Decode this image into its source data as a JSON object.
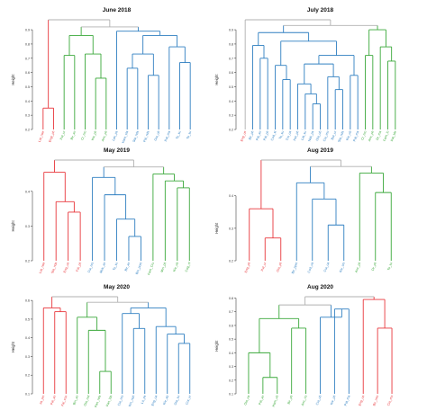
{
  "colors": {
    "red": "#e8373c",
    "green": "#3aa83a",
    "blue": "#2f7fc1",
    "gray": "#b0b0b0"
  },
  "chart_data": [
    {
      "type": "dendrogram",
      "title": "June 2018",
      "ylabel": "Height",
      "ylim": [
        0.2,
        0.9
      ],
      "yticks": [
        0.2,
        0.3,
        0.4,
        0.5,
        0.6,
        0.7,
        0.8,
        0.9
      ],
      "leaves": [
        {
          "label": "Lat_nae",
          "color": "red"
        },
        {
          "label": "Engl_ph",
          "color": "red"
        },
        {
          "label": "Pal_ur",
          "color": "green"
        },
        {
          "label": "Bir_an",
          "color": "green"
        },
        {
          "label": "Cr_mo",
          "color": "green"
        },
        {
          "label": "Kiv_ph",
          "color": "green"
        },
        {
          "label": "Anc_ph",
          "color": "green"
        },
        {
          "label": "Lak_ps",
          "color": "blue"
        },
        {
          "label": "Ham_sla",
          "color": "blue"
        },
        {
          "label": "Sta_nds",
          "color": "blue"
        },
        {
          "label": "Pal_nds",
          "color": "blue"
        },
        {
          "label": "Gla_ub",
          "color": "blue"
        },
        {
          "label": "Pat_ma",
          "color": "blue"
        },
        {
          "label": "To_su",
          "color": "blue"
        },
        {
          "label": "To_su",
          "color": "blue"
        }
      ],
      "merges": [
        {
          "a": 0,
          "b": 1,
          "h": 0.35,
          "color": "red"
        },
        {
          "a": 2,
          "b": 3,
          "h": 0.72,
          "color": "green"
        },
        {
          "a": 5,
          "b": 6,
          "h": 0.56,
          "color": "green"
        },
        {
          "a": 4,
          "b": "m2",
          "h": 0.73,
          "color": "green"
        },
        {
          "a": "m1",
          "b": "m3",
          "h": 0.86,
          "color": "green"
        },
        {
          "a": 8,
          "b": 9,
          "h": 0.63,
          "color": "blue"
        },
        {
          "a": 10,
          "b": 11,
          "h": 0.58,
          "color": "blue"
        },
        {
          "a": 13,
          "b": 14,
          "h": 0.67,
          "color": "blue"
        },
        {
          "a": 12,
          "b": "m7",
          "h": 0.78,
          "color": "blue"
        },
        {
          "a": "m5",
          "b": "m6",
          "h": 0.73,
          "color": "blue"
        },
        {
          "a": "m9",
          "b": "m8",
          "h": 0.86,
          "color": "blue"
        },
        {
          "a": 7,
          "b": "m10",
          "h": 0.89,
          "color": "blue"
        },
        {
          "a": "m4",
          "b": "m11",
          "h": 0.92,
          "color": "gray"
        },
        {
          "a": "m0",
          "b": "m12",
          "h": 0.97,
          "color": "gray"
        }
      ]
    },
    {
      "type": "dendrogram",
      "title": "July 2018",
      "ylabel": "Height",
      "ylim": [
        0.2,
        0.9
      ],
      "yticks": [
        0.2,
        0.3,
        0.4,
        0.5,
        0.6,
        0.7,
        0.8,
        0.9
      ],
      "leaves": [
        {
          "label": "Eng_ue",
          "color": "red"
        },
        {
          "label": "Bir_ph",
          "color": "blue"
        },
        {
          "label": "Pal_an",
          "color": "blue"
        },
        {
          "label": "Pal_ph",
          "color": "blue"
        },
        {
          "label": "Cod_st",
          "color": "blue"
        },
        {
          "label": "To_su",
          "color": "blue"
        },
        {
          "label": "Tro_ua",
          "color": "blue"
        },
        {
          "label": "Hel_ph",
          "color": "blue"
        },
        {
          "label": "Lat_su",
          "color": "blue"
        },
        {
          "label": "Nak_ps",
          "color": "blue"
        },
        {
          "label": "Gla_ub",
          "color": "blue"
        },
        {
          "label": "Cia_mo",
          "color": "blue"
        },
        {
          "label": "Bol_ur",
          "color": "blue"
        },
        {
          "label": "Sta_nds",
          "color": "blue"
        },
        {
          "label": "Kiv_ub",
          "color": "blue"
        },
        {
          "label": "Pat_ma",
          "color": "blue"
        },
        {
          "label": "Cr_mo",
          "color": "green"
        },
        {
          "label": "Anc_ph",
          "color": "green"
        },
        {
          "label": "Dr_ma",
          "color": "green"
        },
        {
          "label": "Fam_lo",
          "color": "green"
        },
        {
          "label": "Pat_lde",
          "color": "green"
        }
      ],
      "merges": [
        {
          "a": 2,
          "b": 3,
          "h": 0.7,
          "color": "blue"
        },
        {
          "a": 1,
          "b": "m0",
          "h": 0.79,
          "color": "blue"
        },
        {
          "a": 5,
          "b": 6,
          "h": 0.55,
          "color": "blue"
        },
        {
          "a": 4,
          "b": "m2",
          "h": 0.65,
          "color": "blue"
        },
        {
          "a": 9,
          "b": 10,
          "h": 0.38,
          "color": "blue"
        },
        {
          "a": 8,
          "b": "m4",
          "h": 0.45,
          "color": "blue"
        },
        {
          "a": 7,
          "b": "m5",
          "h": 0.52,
          "color": "blue"
        },
        {
          "a": 12,
          "b": 13,
          "h": 0.48,
          "color": "blue"
        },
        {
          "a": 11,
          "b": "m7",
          "h": 0.57,
          "color": "blue"
        },
        {
          "a": "m6",
          "b": "m8",
          "h": 0.66,
          "color": "blue"
        },
        {
          "a": 14,
          "b": 15,
          "h": 0.58,
          "color": "blue"
        },
        {
          "a": "m9",
          "b": "m10",
          "h": 0.72,
          "color": "blue"
        },
        {
          "a": "m3",
          "b": "m11",
          "h": 0.82,
          "color": "blue"
        },
        {
          "a": "m1",
          "b": "m12",
          "h": 0.88,
          "color": "blue"
        },
        {
          "a": 19,
          "b": 20,
          "h": 0.68,
          "color": "green"
        },
        {
          "a": 18,
          "b": "m14",
          "h": 0.78,
          "color": "green"
        },
        {
          "a": 16,
          "b": 17,
          "h": 0.72,
          "color": "green"
        },
        {
          "a": "m16",
          "b": "m15",
          "h": 0.9,
          "color": "green"
        },
        {
          "a": "m13",
          "b": "m17",
          "h": 0.93,
          "color": "gray"
        },
        {
          "a": 0,
          "b": "m18",
          "h": 0.97,
          "color": "gray"
        }
      ]
    },
    {
      "type": "dendrogram",
      "title": "May 2019",
      "ylabel": "Height",
      "ylim": [
        0.2,
        0.4
      ],
      "yticks": [
        0.2,
        0.3,
        0.4
      ],
      "leaves": [
        {
          "label": "Lat_nae",
          "color": "red"
        },
        {
          "label": "Sta_nds",
          "color": "red"
        },
        {
          "label": "Eng_ue",
          "color": "red"
        },
        {
          "label": "Fal_ph",
          "color": "red"
        },
        {
          "label": "Cia_mo",
          "color": "blue"
        },
        {
          "label": "Muk_an",
          "color": "blue"
        },
        {
          "label": "To_su",
          "color": "blue"
        },
        {
          "label": "Bir_an",
          "color": "blue"
        },
        {
          "label": "Bin_pom",
          "color": "blue"
        },
        {
          "label": "Fam_Cru",
          "color": "green"
        },
        {
          "label": "Min_ph",
          "color": "green"
        },
        {
          "label": "Kiv_ub",
          "color": "green"
        },
        {
          "label": "Cog_nl",
          "color": "green"
        }
      ],
      "merges": [
        {
          "a": 2,
          "b": 3,
          "h": 0.34,
          "color": "red"
        },
        {
          "a": 1,
          "b": "m0",
          "h": 0.37,
          "color": "red"
        },
        {
          "a": 0,
          "b": "m1",
          "h": 0.455,
          "color": "red"
        },
        {
          "a": 7,
          "b": 8,
          "h": 0.27,
          "color": "blue"
        },
        {
          "a": 6,
          "b": "m3",
          "h": 0.32,
          "color": "blue"
        },
        {
          "a": 5,
          "b": "m4",
          "h": 0.39,
          "color": "blue"
        },
        {
          "a": 4,
          "b": "m5",
          "h": 0.44,
          "color": "blue"
        },
        {
          "a": 11,
          "b": 12,
          "h": 0.41,
          "color": "green"
        },
        {
          "a": 10,
          "b": "m7",
          "h": 0.43,
          "color": "green"
        },
        {
          "a": 9,
          "b": "m8",
          "h": 0.45,
          "color": "green"
        },
        {
          "a": "m6",
          "b": "m9",
          "h": 0.47,
          "color": "gray"
        },
        {
          "a": "m2",
          "b": "m10",
          "h": 0.49,
          "color": "gray"
        }
      ]
    },
    {
      "type": "dendrogram",
      "title": "Aug 2019",
      "ylabel": "Height",
      "ylim": [
        0.2,
        0.4
      ],
      "yticks": [
        0.2,
        0.3,
        0.4
      ],
      "leaves": [
        {
          "label": "Eng_ph",
          "color": "red"
        },
        {
          "label": "Pal_ur",
          "color": "red"
        },
        {
          "label": "Gla_ph",
          "color": "red"
        },
        {
          "label": "Bir_ppm",
          "color": "blue"
        },
        {
          "label": "Cod_ua",
          "color": "blue"
        },
        {
          "label": "Cia_ua",
          "color": "blue"
        },
        {
          "label": "Kiv_cm",
          "color": "blue"
        },
        {
          "label": "Anc_ph",
          "color": "green"
        },
        {
          "label": "Dr_ph",
          "color": "green"
        },
        {
          "label": "To_su",
          "color": "green"
        }
      ],
      "merges": [
        {
          "a": 1,
          "b": 2,
          "h": 0.27,
          "color": "red"
        },
        {
          "a": 0,
          "b": "m0",
          "h": 0.36,
          "color": "red"
        },
        {
          "a": 5,
          "b": 6,
          "h": 0.31,
          "color": "blue"
        },
        {
          "a": 4,
          "b": "m2",
          "h": 0.39,
          "color": "blue"
        },
        {
          "a": 3,
          "b": "m3",
          "h": 0.44,
          "color": "blue"
        },
        {
          "a": 8,
          "b": 9,
          "h": 0.41,
          "color": "green"
        },
        {
          "a": 7,
          "b": "m5",
          "h": 0.47,
          "color": "green"
        },
        {
          "a": "m4",
          "b": "m6",
          "h": 0.49,
          "color": "gray"
        },
        {
          "a": "m1",
          "b": "m7",
          "h": 0.51,
          "color": "gray"
        }
      ]
    },
    {
      "type": "dendrogram",
      "title": "May 2020",
      "ylabel": "Height",
      "ylim": [
        0.1,
        0.6
      ],
      "yticks": [
        0.1,
        0.2,
        0.3,
        0.4,
        0.5,
        0.6
      ],
      "leaves": [
        {
          "label": "Ja_pin",
          "color": "red"
        },
        {
          "label": "Pal_an",
          "color": "red"
        },
        {
          "label": "Fal_cou",
          "color": "red"
        },
        {
          "label": "Bin_an",
          "color": "green"
        },
        {
          "label": "Ola_not",
          "color": "green"
        },
        {
          "label": "Pan_nds",
          "color": "green"
        },
        {
          "label": "Pan_lde",
          "color": "green"
        },
        {
          "label": "Cia_mo",
          "color": "blue"
        },
        {
          "label": "Kin_nah",
          "color": "blue"
        },
        {
          "label": "Lo_ps",
          "color": "blue"
        },
        {
          "label": "Eng_ua",
          "color": "blue"
        },
        {
          "label": "Kiv_ap",
          "color": "blue"
        },
        {
          "label": "Ola_su",
          "color": "blue"
        },
        {
          "label": "Cra_ur",
          "color": "blue"
        }
      ],
      "merges": [
        {
          "a": 1,
          "b": 2,
          "h": 0.54,
          "color": "red"
        },
        {
          "a": 0,
          "b": "m0",
          "h": 0.56,
          "color": "red"
        },
        {
          "a": 5,
          "b": 6,
          "h": 0.22,
          "color": "green"
        },
        {
          "a": 4,
          "b": "m2",
          "h": 0.44,
          "color": "green"
        },
        {
          "a": 3,
          "b": "m3",
          "h": 0.51,
          "color": "green"
        },
        {
          "a": 8,
          "b": 9,
          "h": 0.45,
          "color": "blue"
        },
        {
          "a": 7,
          "b": "m5",
          "h": 0.53,
          "color": "blue"
        },
        {
          "a": 12,
          "b": 13,
          "h": 0.37,
          "color": "blue"
        },
        {
          "a": 11,
          "b": "m7",
          "h": 0.42,
          "color": "blue"
        },
        {
          "a": 10,
          "b": "m8",
          "h": 0.46,
          "color": "blue"
        },
        {
          "a": "m6",
          "b": "m9",
          "h": 0.56,
          "color": "blue"
        },
        {
          "a": "m4",
          "b": "m10",
          "h": 0.59,
          "color": "gray"
        },
        {
          "a": "m1",
          "b": "m11",
          "h": 0.62,
          "color": "gray"
        }
      ]
    },
    {
      "type": "dendrogram",
      "title": "Aug 2020",
      "ylabel": "Height",
      "ylim": [
        0.1,
        0.8
      ],
      "yticks": [
        0.1,
        0.2,
        0.3,
        0.4,
        0.5,
        0.6,
        0.7,
        0.8
      ],
      "leaves": [
        {
          "label": "Ola_ua",
          "color": "green"
        },
        {
          "label": "Pal_an",
          "color": "green"
        },
        {
          "label": "Ham_ub",
          "color": "green"
        },
        {
          "label": "Bir_ph",
          "color": "green"
        },
        {
          "label": "Anc_no",
          "color": "green"
        },
        {
          "label": "Cia_ub",
          "color": "blue"
        },
        {
          "label": "Kiv_ph",
          "color": "blue"
        },
        {
          "label": "Pat_ma",
          "color": "blue"
        },
        {
          "label": "Eng_ue",
          "color": "red"
        },
        {
          "label": "Bir_mm",
          "color": "red"
        },
        {
          "label": "Cia_mo",
          "color": "red"
        }
      ],
      "merges": [
        {
          "a": 1,
          "b": 2,
          "h": 0.22,
          "color": "green"
        },
        {
          "a": 0,
          "b": "m0",
          "h": 0.4,
          "color": "green"
        },
        {
          "a": 3,
          "b": 4,
          "h": 0.58,
          "color": "green"
        },
        {
          "a": "m1",
          "b": "m2",
          "h": 0.65,
          "color": "green"
        },
        {
          "a": 6,
          "b": 7,
          "h": 0.72,
          "color": "blue"
        },
        {
          "a": 5,
          "b": "m4",
          "h": 0.66,
          "color": "blue"
        },
        {
          "a": 9,
          "b": 10,
          "h": 0.58,
          "color": "red"
        },
        {
          "a": 8,
          "b": "m6",
          "h": 0.79,
          "color": "red"
        },
        {
          "a": "m3",
          "b": "m5",
          "h": 0.75,
          "color": "gray"
        },
        {
          "a": "m8",
          "b": "m7",
          "h": 0.81,
          "color": "gray"
        }
      ]
    }
  ]
}
